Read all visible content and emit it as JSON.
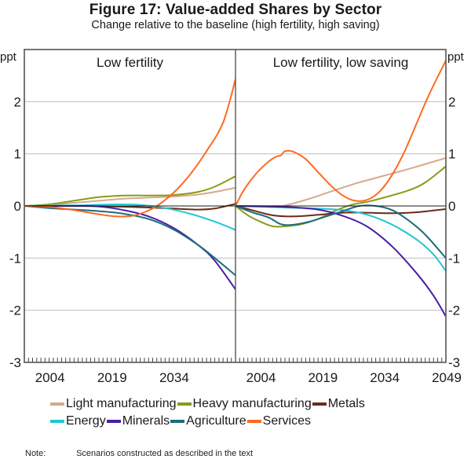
{
  "title": "Figure 17: Value-added Shares by Sector",
  "subtitle": "Change relative to the baseline (high fertility, high saving)",
  "note": {
    "label": "Note:",
    "text": "Scenarios constructed as described in the text"
  },
  "chart_data": [
    {
      "type": "line",
      "title": "Low fertility",
      "xlabel": "",
      "ylabel": "ppt",
      "xlim": [
        1998,
        2049
      ],
      "ylim": [
        -3,
        3
      ],
      "yticks": [
        -3,
        -2,
        -1,
        0,
        1,
        2
      ],
      "xtick_labels": [
        "2004",
        "2019",
        "2034"
      ],
      "xticks": [
        2004,
        2019,
        2034
      ],
      "grid": true,
      "y_axis_side": "left",
      "series": [
        {
          "name": "Light manufacturing",
          "color": "#D8A98A",
          "points": [
            [
              1998,
              0
            ],
            [
              2004,
              0.02
            ],
            [
              2010,
              0.06
            ],
            [
              2016,
              0.1
            ],
            [
              2022,
              0.14
            ],
            [
              2028,
              0.16
            ],
            [
              2034,
              0.18
            ],
            [
              2040,
              0.22
            ],
            [
              2044,
              0.27
            ],
            [
              2049,
              0.35
            ]
          ]
        },
        {
          "name": "Heavy manufacturing",
          "color": "#8A9A1B",
          "points": [
            [
              1998,
              0
            ],
            [
              2004,
              0.03
            ],
            [
              2010,
              0.1
            ],
            [
              2016,
              0.17
            ],
            [
              2022,
              0.2
            ],
            [
              2028,
              0.2
            ],
            [
              2034,
              0.21
            ],
            [
              2040,
              0.27
            ],
            [
              2044,
              0.37
            ],
            [
              2049,
              0.57
            ]
          ]
        },
        {
          "name": "Metals",
          "color": "#6A2C17",
          "points": [
            [
              1998,
              0
            ],
            [
              2010,
              0
            ],
            [
              2020,
              -0.01
            ],
            [
              2028,
              -0.03
            ],
            [
              2034,
              -0.05
            ],
            [
              2040,
              -0.07
            ],
            [
              2044,
              -0.05
            ],
            [
              2049,
              0.04
            ]
          ]
        },
        {
          "name": "Energy",
          "color": "#21C6D6",
          "points": [
            [
              1998,
              0
            ],
            [
              2010,
              0.01
            ],
            [
              2020,
              0.03
            ],
            [
              2026,
              0.02
            ],
            [
              2032,
              -0.04
            ],
            [
              2038,
              -0.15
            ],
            [
              2044,
              -0.3
            ],
            [
              2049,
              -0.46
            ]
          ]
        },
        {
          "name": "Minerals",
          "color": "#4A1EA6",
          "points": [
            [
              1998,
              0
            ],
            [
              2010,
              0
            ],
            [
              2016,
              -0.01
            ],
            [
              2022,
              -0.08
            ],
            [
              2028,
              -0.2
            ],
            [
              2034,
              -0.42
            ],
            [
              2040,
              -0.75
            ],
            [
              2044,
              -1.05
            ],
            [
              2049,
              -1.6
            ]
          ]
        },
        {
          "name": "Agriculture",
          "color": "#1A6E7D",
          "points": [
            [
              1998,
              0
            ],
            [
              2004,
              -0.04
            ],
            [
              2010,
              -0.07
            ],
            [
              2016,
              -0.1
            ],
            [
              2022,
              -0.15
            ],
            [
              2028,
              -0.25
            ],
            [
              2034,
              -0.45
            ],
            [
              2040,
              -0.75
            ],
            [
              2044,
              -1.0
            ],
            [
              2049,
              -1.33
            ]
          ]
        },
        {
          "name": "Services",
          "color": "#FF6A22",
          "points": [
            [
              1998,
              0
            ],
            [
              2004,
              -0.02
            ],
            [
              2010,
              -0.08
            ],
            [
              2016,
              -0.16
            ],
            [
              2020,
              -0.2
            ],
            [
              2024,
              -0.19
            ],
            [
              2027,
              -0.12
            ],
            [
              2030,
              0
            ],
            [
              2034,
              0.25
            ],
            [
              2038,
              0.6
            ],
            [
              2042,
              1.05
            ],
            [
              2046,
              1.6
            ],
            [
              2049,
              2.43
            ]
          ]
        }
      ]
    },
    {
      "type": "line",
      "title": "Low fertility, low saving",
      "xlabel": "",
      "ylabel": "ppt",
      "xlim": [
        1998,
        2049
      ],
      "ylim": [
        -3,
        3
      ],
      "yticks": [
        -3,
        -2,
        -1,
        0,
        1,
        2
      ],
      "xtick_labels": [
        "2004",
        "2019",
        "2034",
        "2049"
      ],
      "xticks": [
        2004,
        2019,
        2034,
        2049
      ],
      "grid": true,
      "y_axis_side": "right",
      "series": [
        {
          "name": "Light manufacturing",
          "color": "#D8A98A",
          "points": [
            [
              1998,
              0
            ],
            [
              2008,
              0
            ],
            [
              2010,
              0.01
            ],
            [
              2016,
              0.14
            ],
            [
              2022,
              0.3
            ],
            [
              2028,
              0.45
            ],
            [
              2034,
              0.58
            ],
            [
              2040,
              0.71
            ],
            [
              2049,
              0.92
            ]
          ]
        },
        {
          "name": "Heavy manufacturing",
          "color": "#8A9A1B",
          "points": [
            [
              1998,
              0
            ],
            [
              2001,
              -0.18
            ],
            [
              2004,
              -0.3
            ],
            [
              2007,
              -0.39
            ],
            [
              2010,
              -0.39
            ],
            [
              2014,
              -0.35
            ],
            [
              2018,
              -0.25
            ],
            [
              2022,
              -0.1
            ],
            [
              2026,
              0.02
            ],
            [
              2030,
              0.08
            ],
            [
              2034,
              0.16
            ],
            [
              2040,
              0.3
            ],
            [
              2044,
              0.45
            ],
            [
              2049,
              0.76
            ]
          ]
        },
        {
          "name": "Metals",
          "color": "#6A2C17",
          "points": [
            [
              1998,
              0
            ],
            [
              2002,
              -0.08
            ],
            [
              2007,
              -0.18
            ],
            [
              2012,
              -0.2
            ],
            [
              2018,
              -0.17
            ],
            [
              2024,
              -0.13
            ],
            [
              2030,
              -0.13
            ],
            [
              2036,
              -0.14
            ],
            [
              2042,
              -0.12
            ],
            [
              2049,
              -0.06
            ]
          ]
        },
        {
          "name": "Energy",
          "color": "#21C6D6",
          "points": [
            [
              1998,
              0
            ],
            [
              2010,
              -0.03
            ],
            [
              2018,
              -0.05
            ],
            [
              2024,
              -0.08
            ],
            [
              2030,
              -0.17
            ],
            [
              2036,
              -0.36
            ],
            [
              2042,
              -0.65
            ],
            [
              2046,
              -0.93
            ],
            [
              2049,
              -1.25
            ]
          ]
        },
        {
          "name": "Minerals",
          "color": "#4A1EA6",
          "points": [
            [
              1998,
              0
            ],
            [
              2010,
              -0.02
            ],
            [
              2018,
              -0.07
            ],
            [
              2024,
              -0.19
            ],
            [
              2030,
              -0.4
            ],
            [
              2036,
              -0.78
            ],
            [
              2042,
              -1.3
            ],
            [
              2046,
              -1.72
            ],
            [
              2049,
              -2.12
            ]
          ]
        },
        {
          "name": "Agriculture",
          "color": "#1A6E7D",
          "points": [
            [
              1998,
              0
            ],
            [
              2002,
              -0.12
            ],
            [
              2006,
              -0.22
            ],
            [
              2009,
              -0.35
            ],
            [
              2012,
              -0.36
            ],
            [
              2016,
              -0.3
            ],
            [
              2020,
              -0.2
            ],
            [
              2024,
              -0.1
            ],
            [
              2028,
              0
            ],
            [
              2032,
              0
            ],
            [
              2036,
              -0.08
            ],
            [
              2040,
              -0.28
            ],
            [
              2044,
              -0.55
            ],
            [
              2049,
              -1.0
            ]
          ]
        },
        {
          "name": "Services",
          "color": "#FF6A22",
          "points": [
            [
              1998,
              0
            ],
            [
              2000,
              0.3
            ],
            [
              2003,
              0.62
            ],
            [
              2006,
              0.85
            ],
            [
              2008,
              0.95
            ],
            [
              2009,
              0.97
            ],
            [
              2010,
              1.05
            ],
            [
              2012,
              1.04
            ],
            [
              2015,
              0.9
            ],
            [
              2018,
              0.65
            ],
            [
              2021,
              0.4
            ],
            [
              2024,
              0.2
            ],
            [
              2027,
              0.1
            ],
            [
              2030,
              0.12
            ],
            [
              2033,
              0.28
            ],
            [
              2036,
              0.6
            ],
            [
              2039,
              1.05
            ],
            [
              2042,
              1.6
            ],
            [
              2045,
              2.15
            ],
            [
              2049,
              2.79
            ]
          ]
        }
      ]
    }
  ],
  "legend": {
    "rows": [
      [
        {
          "name": "Light manufacturing",
          "color": "#D8A98A"
        },
        {
          "name": "Heavy manufacturing",
          "color": "#8A9A1B"
        },
        {
          "name": "Metals",
          "color": "#6A2C17"
        }
      ],
      [
        {
          "name": "Energy",
          "color": "#21C6D6"
        },
        {
          "name": "Minerals",
          "color": "#4A1EA6"
        },
        {
          "name": "Agriculture",
          "color": "#1A6E7D"
        },
        {
          "name": "Services",
          "color": "#FF6A22"
        }
      ]
    ]
  }
}
